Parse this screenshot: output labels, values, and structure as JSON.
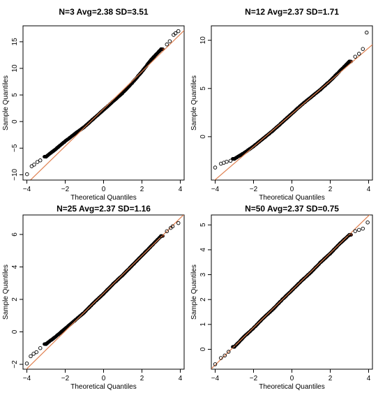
{
  "chart_data": [
    {
      "type": "scatter",
      "title": "N=3 Avg=2.38 SD=3.51",
      "xlabel": "Theoretical Quantiles",
      "ylabel": "Sample Quantiles",
      "xlim": [
        -4.2,
        4.2
      ],
      "ylim": [
        -11,
        18
      ],
      "xticks": [
        -4,
        -2,
        0,
        2,
        4
      ],
      "yticks": [
        -10,
        -5,
        0,
        5,
        10,
        15
      ],
      "reference_line": {
        "intercept": 2.38,
        "slope": 3.51,
        "color": "#e08050"
      },
      "points": [
        [
          -3.99,
          -9.9
        ],
        [
          -3.75,
          -8.4
        ],
        [
          -3.62,
          -8.1
        ],
        [
          -3.45,
          -7.6
        ],
        [
          -3.3,
          -7.3
        ],
        [
          -3.0,
          -6.6
        ],
        [
          -2.5,
          -5.2
        ],
        [
          -2.0,
          -3.7
        ],
        [
          -1.5,
          -2.3
        ],
        [
          -1.0,
          -1.0
        ],
        [
          -0.5,
          0.6
        ],
        [
          0.0,
          2.2
        ],
        [
          0.5,
          3.8
        ],
        [
          1.0,
          5.4
        ],
        [
          1.5,
          7.3
        ],
        [
          2.0,
          9.4
        ],
        [
          2.5,
          11.7
        ],
        [
          3.0,
          13.6
        ],
        [
          3.3,
          14.5
        ],
        [
          3.45,
          15.1
        ],
        [
          3.65,
          16.3
        ],
        [
          3.75,
          16.6
        ],
        [
          3.9,
          17.0
        ]
      ],
      "point_color": "#000000",
      "fill_color": "#b04020"
    },
    {
      "type": "scatter",
      "title": "N=12 Avg=2.37 SD=1.71",
      "xlabel": "Theoretical Quantiles",
      "ylabel": "Sample Quantiles",
      "xlim": [
        -4.2,
        4.2
      ],
      "ylim": [
        -4.5,
        11.5
      ],
      "xticks": [
        -4,
        -2,
        0,
        2,
        4
      ],
      "yticks": [
        0,
        5,
        10
      ],
      "reference_line": {
        "intercept": 2.37,
        "slope": 1.71,
        "color": "#e08050"
      },
      "points": [
        [
          -4.0,
          -3.2
        ],
        [
          -3.7,
          -2.8
        ],
        [
          -3.55,
          -2.7
        ],
        [
          -3.4,
          -2.6
        ],
        [
          -3.2,
          -2.5
        ],
        [
          -3.0,
          -2.3
        ],
        [
          -2.5,
          -1.7
        ],
        [
          -2.0,
          -1.0
        ],
        [
          -1.5,
          -0.2
        ],
        [
          -1.0,
          0.6
        ],
        [
          -0.5,
          1.5
        ],
        [
          0.0,
          2.4
        ],
        [
          0.5,
          3.3
        ],
        [
          1.0,
          4.1
        ],
        [
          1.5,
          4.9
        ],
        [
          2.0,
          5.8
        ],
        [
          2.5,
          6.8
        ],
        [
          3.0,
          7.8
        ],
        [
          3.3,
          8.3
        ],
        [
          3.5,
          8.6
        ],
        [
          3.7,
          9.1
        ],
        [
          3.9,
          10.8
        ]
      ],
      "point_color": "#000000",
      "fill_color": "#b04020"
    },
    {
      "type": "scatter",
      "title": "N=25 Avg=2.37 SD=1.16",
      "xlabel": "Theoretical Quantiles",
      "ylabel": "Sample Quantiles",
      "xlim": [
        -4.2,
        4.2
      ],
      "ylim": [
        -2.3,
        7.2
      ],
      "xticks": [
        -4,
        -2,
        0,
        2,
        4
      ],
      "yticks": [
        -2,
        0,
        2,
        4,
        6
      ],
      "reference_line": {
        "intercept": 2.37,
        "slope": 1.16,
        "color": "#e08050"
      },
      "points": [
        [
          -4.0,
          -1.95
        ],
        [
          -3.8,
          -1.5
        ],
        [
          -3.65,
          -1.35
        ],
        [
          -3.5,
          -1.25
        ],
        [
          -3.3,
          -1.0
        ],
        [
          -3.0,
          -0.75
        ],
        [
          -2.5,
          -0.3
        ],
        [
          -2.0,
          0.2
        ],
        [
          -1.5,
          0.7
        ],
        [
          -1.0,
          1.2
        ],
        [
          -0.5,
          1.8
        ],
        [
          0.0,
          2.35
        ],
        [
          0.5,
          2.95
        ],
        [
          1.0,
          3.5
        ],
        [
          1.5,
          4.1
        ],
        [
          2.0,
          4.7
        ],
        [
          2.5,
          5.3
        ],
        [
          3.0,
          5.9
        ],
        [
          3.3,
          6.2
        ],
        [
          3.5,
          6.4
        ],
        [
          3.6,
          6.5
        ],
        [
          3.9,
          6.7
        ]
      ],
      "point_color": "#000000",
      "fill_color": "#b04020"
    },
    {
      "type": "scatter",
      "title": "N=50 Avg=2.37 SD=0.75",
      "xlabel": "Theoretical Quantiles",
      "ylabel": "Sample Quantiles",
      "xlim": [
        -4.2,
        4.2
      ],
      "ylim": [
        -0.8,
        5.4
      ],
      "xticks": [
        -4,
        -2,
        0,
        2,
        4
      ],
      "yticks": [
        0,
        1,
        2,
        3,
        4,
        5
      ],
      "reference_line": {
        "intercept": 2.37,
        "slope": 0.75,
        "color": "#e08050"
      },
      "points": [
        [
          -4.0,
          -0.6
        ],
        [
          -3.7,
          -0.35
        ],
        [
          -3.5,
          -0.25
        ],
        [
          -3.3,
          -0.1
        ],
        [
          -3.0,
          0.1
        ],
        [
          -2.5,
          0.5
        ],
        [
          -2.0,
          0.85
        ],
        [
          -1.5,
          1.25
        ],
        [
          -1.0,
          1.6
        ],
        [
          -0.5,
          2.0
        ],
        [
          0.0,
          2.37
        ],
        [
          0.5,
          2.75
        ],
        [
          1.0,
          3.1
        ],
        [
          1.5,
          3.5
        ],
        [
          2.0,
          3.85
        ],
        [
          2.5,
          4.25
        ],
        [
          3.0,
          4.6
        ],
        [
          3.3,
          4.75
        ],
        [
          3.5,
          4.8
        ],
        [
          3.7,
          4.85
        ],
        [
          3.95,
          5.1
        ]
      ],
      "point_color": "#000000",
      "fill_color": "#b04020"
    }
  ]
}
